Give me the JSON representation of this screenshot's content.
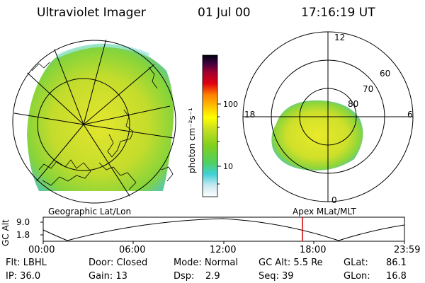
{
  "header": {
    "instrument": "Ultraviolet Imager",
    "date": "01 Jul 00",
    "time": "17:16:19 UT"
  },
  "colorbar": {
    "unit_label": "photon cm⁻²s⁻¹",
    "tick_100": "100",
    "tick_10": "10"
  },
  "polar_plot": {
    "labels": [
      "12",
      "60",
      "70",
      "80",
      "18",
      "6",
      "0"
    ]
  },
  "projection_labels": {
    "left": "Geographic Lat/Lon",
    "right": "Apex MLat/MLT"
  },
  "altitude_plot": {
    "ylabel": "GC Alt",
    "yticks": [
      "9.0",
      "1.8"
    ],
    "xticks": [
      "00:00",
      "06:00",
      "12:00",
      "18:00",
      "23:59"
    ]
  },
  "info": {
    "filter": "Flt: LBHL",
    "ip": "IP: 36.0",
    "door": "Door: Closed",
    "gain": "Gain: 13",
    "mode": "Mode: Normal",
    "dsp_label": "Dsp:",
    "dsp_value": "2.9",
    "gcalt": "GC Alt: 5.5 Re",
    "seq": "Seq: 39",
    "glat_label": "GLat:",
    "glat_value": "86.1",
    "glon_label": "GLon:",
    "glon_value": "16.8"
  },
  "colors": {
    "aurora_green": "#7ed321",
    "aurora_yellow": "#e6e62a",
    "marker_red": "#d00000"
  }
}
